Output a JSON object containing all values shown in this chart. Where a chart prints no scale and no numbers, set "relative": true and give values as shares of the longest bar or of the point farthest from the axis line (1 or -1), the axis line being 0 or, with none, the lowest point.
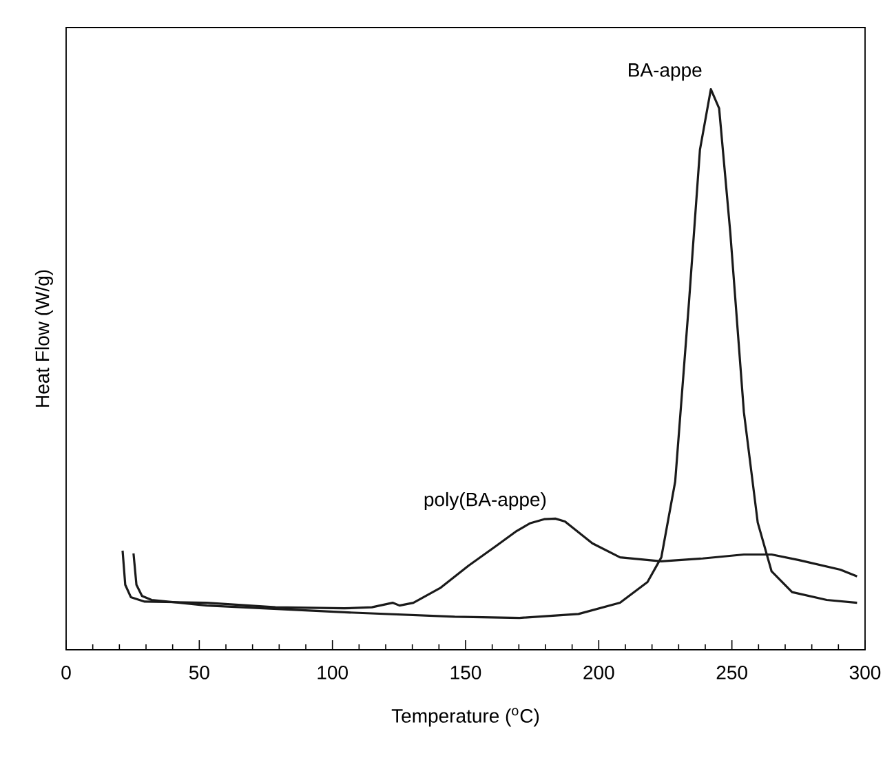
{
  "chart_data": {
    "type": "line",
    "xlabel": "Temperature ($^{o}$C)",
    "ylabel": "Heat  Flow  (W/g)",
    "relative": true,
    "xlim": [
      0,
      300
    ],
    "xticks": [
      0,
      50,
      100,
      150,
      200,
      250,
      300
    ],
    "marker": "none",
    "line_style": "solid",
    "series": [
      {
        "name": "poly(BA-appe)",
        "color": "#1a1a1a",
        "x": [
          21.2,
          22.2,
          24.3,
          29.5,
          52.8,
          78.6,
          104.5,
          114.8,
          122.6,
          125.2,
          130.4,
          140.7,
          151.1,
          161.4,
          169.2,
          174.3,
          179.5,
          183.7,
          187.3,
          197.6,
          208,
          223.5,
          239,
          254.5,
          264.9,
          275.2,
          290.7,
          297
        ],
        "values": [
          0.177,
          0.116,
          0.094,
          0.086,
          0.084,
          0.076,
          0.074,
          0.076,
          0.084,
          0.079,
          0.084,
          0.111,
          0.15,
          0.185,
          0.212,
          0.226,
          0.233,
          0.234,
          0.229,
          0.19,
          0.165,
          0.158,
          0.163,
          0.17,
          0.17,
          0.16,
          0.143,
          0.131
        ]
      },
      {
        "name": "BA-appe",
        "color": "#1a1a1a",
        "x": [
          25.3,
          26.4,
          28.5,
          32.1,
          52.8,
          104.5,
          145.9,
          170.2,
          192.4,
          208,
          218.3,
          223.5,
          228.7,
          233.9,
          238,
          242.1,
          245.2,
          249.4,
          254.5,
          259.7,
          264.9,
          272.6,
          285.6,
          297
        ],
        "values": [
          0.172,
          0.116,
          0.096,
          0.089,
          0.079,
          0.067,
          0.059,
          0.057,
          0.064,
          0.084,
          0.121,
          0.165,
          0.3,
          0.621,
          0.892,
          1.0,
          0.966,
          0.744,
          0.424,
          0.227,
          0.14,
          0.103,
          0.089,
          0.084
        ]
      }
    ]
  }
}
